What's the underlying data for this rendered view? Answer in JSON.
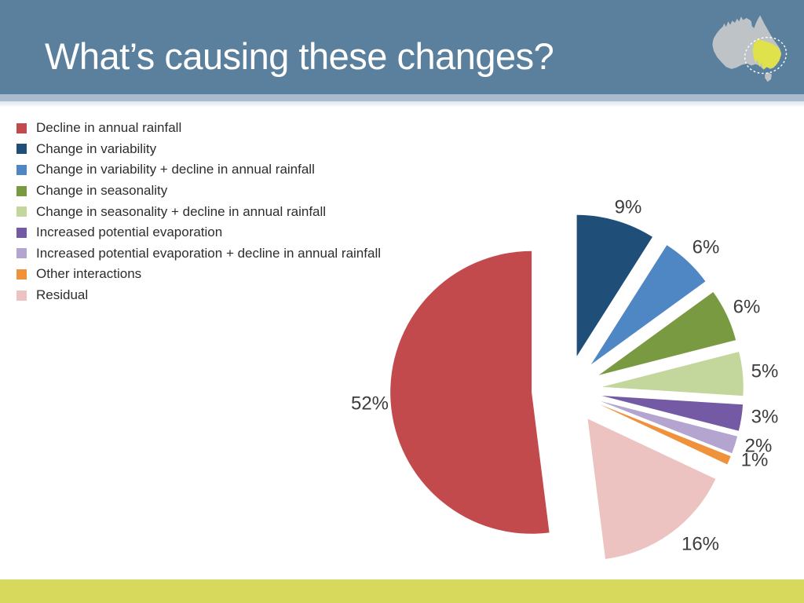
{
  "slide": {
    "title": "What’s causing these changes?",
    "header_bg": "#5b809d",
    "header_band_color": "#a8bccd",
    "footer_bar_color": "#d7d95c",
    "background": "#ffffff"
  },
  "map_icon": {
    "name": "australia-region-map",
    "land_color": "#bec3c7",
    "highlight_color": "#dfe24b",
    "highlight_outline": "white-dashed-ellipse"
  },
  "chart_data": {
    "type": "pie",
    "title": "",
    "exploded": true,
    "direction": "clockwise",
    "start_angle_deg": 0,
    "legend_position": "upper-left",
    "items": [
      {
        "label": "Decline in annual rainfall",
        "value": 52,
        "pct_label": "52%",
        "color": "#c2494c"
      },
      {
        "label": "Change in variability",
        "value": 9,
        "pct_label": "9%",
        "color": "#1f4e79"
      },
      {
        "label": "Change in variability + decline in annual rainfall",
        "value": 6,
        "pct_label": "6%",
        "color": "#4f86c4"
      },
      {
        "label": "Change in seasonality",
        "value": 6,
        "pct_label": "6%",
        "color": "#7a9a41"
      },
      {
        "label": "Change in seasonality + decline in annual rainfall",
        "value": 5,
        "pct_label": "5%",
        "color": "#c3d69b"
      },
      {
        "label": "Increased potential evaporation",
        "value": 3,
        "pct_label": "3%",
        "color": "#7459a4"
      },
      {
        "label": "Increased potential evaporation + decline in annual rainfall",
        "value": 2,
        "pct_label": "2%",
        "color": "#b3a5cf"
      },
      {
        "label": "Other interactions",
        "value": 1,
        "pct_label": "1%",
        "color": "#f0913c"
      },
      {
        "label": "Residual",
        "value": 16,
        "pct_label": "16%",
        "color": "#ecc3c1"
      }
    ],
    "pie_draw_order": [
      1,
      2,
      3,
      4,
      5,
      6,
      7,
      8,
      0
    ]
  }
}
